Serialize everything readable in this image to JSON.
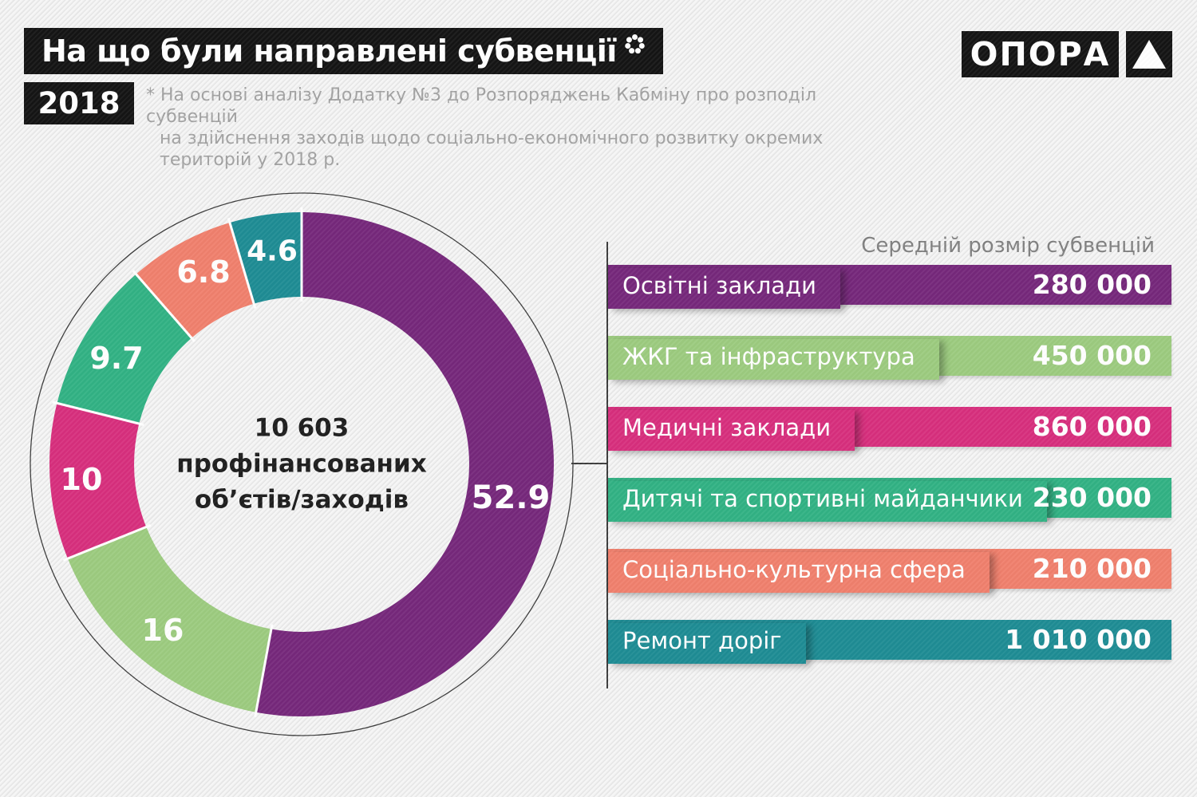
{
  "header": {
    "title": "На що були направлені субвенції",
    "year": "2018",
    "footnote_line1": "* На основі аналізу Додатку №3 до Розпоряджень Кабміну про розподіл субвенцій",
    "footnote_line2": "на здійснення заходів щодо соціально-економічного розвитку окремих територій у 2018 р.",
    "logo_text": "ОПОРА",
    "logo_triangle_icon": "triangle-up"
  },
  "chart_data": {
    "type": "pie",
    "donut": {
      "center_value": "10 603",
      "center_line1": "профінансованих",
      "center_line2": "об’єтів/заходів",
      "unit": "percent",
      "segments": [
        {
          "label": "Освітні заклади",
          "value": 52.9,
          "value_label": "52.9",
          "color": "#76287B"
        },
        {
          "label": "ЖКГ та інфраструктура",
          "value": 16,
          "value_label": "16",
          "color": "#9CCB7F"
        },
        {
          "label": "Медичні заклади",
          "value": 10,
          "value_label": "10",
          "color": "#D72F7D"
        },
        {
          "label": "Дитячі та спортивні майданчики",
          "value": 9.7,
          "value_label": "9.7",
          "color": "#32B284"
        },
        {
          "label": "Соціально-культурна сфера",
          "value": 6.8,
          "value_label": "6.8",
          "color": "#F0806D"
        },
        {
          "label": "Ремонт доріг",
          "value": 4.6,
          "value_label": "4.6",
          "color": "#1E8C94"
        }
      ]
    },
    "bars": {
      "title": "Середній розмір субвенцій",
      "items": [
        {
          "label": "Освітні заклади",
          "value": "280 000",
          "color": "#76287B"
        },
        {
          "label": "ЖКГ та інфраструктура",
          "value": "450 000",
          "color": "#9CCB7F"
        },
        {
          "label": "Медичні заклади",
          "value": "860 000",
          "color": "#D72F7D"
        },
        {
          "label": "Дитячі та спортивні майданчики",
          "value": "230 000",
          "color": "#32B284"
        },
        {
          "label": "Соціально-культурна сфера",
          "value": "210 000",
          "color": "#F0806D"
        },
        {
          "label": "Ремонт доріг",
          "value": "1 010 000",
          "color": "#1E8C94"
        }
      ]
    }
  }
}
